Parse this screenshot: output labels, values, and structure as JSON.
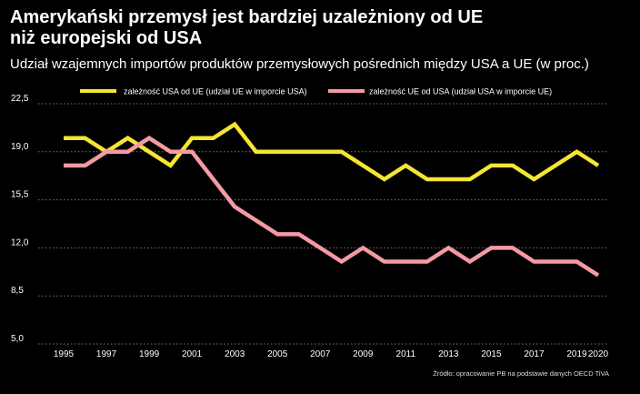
{
  "header": {
    "title_line1": "Amerykański przemysł jest bardziej uzależniony od UE",
    "title_line2": "niż europejski od USA",
    "subtitle": "Udział wzajemnych importów produktów przemysłowych pośrednich między USA a UE (w proc.)"
  },
  "source": "Źródło: opracowanie PB na podstawie danych OECD TiVA",
  "chart_data": {
    "type": "line",
    "title": "Amerykański przemysł jest bardziej uzależniony od UE niż europejski od USA",
    "xlabel": "",
    "ylabel": "",
    "x": [
      1995,
      1996,
      1997,
      1998,
      1999,
      2000,
      2001,
      2002,
      2003,
      2004,
      2005,
      2006,
      2007,
      2008,
      2009,
      2010,
      2011,
      2012,
      2013,
      2014,
      2015,
      2016,
      2017,
      2018,
      2019,
      2020
    ],
    "xticks": [
      "1995",
      "1997",
      "1999",
      "2001",
      "2003",
      "2005",
      "2007",
      "2009",
      "2011",
      "2013",
      "2015",
      "2017",
      "2019",
      "2020"
    ],
    "ylim": [
      5,
      22.5
    ],
    "yticks": [
      "22,5",
      "19,0",
      "15,5",
      "12,0",
      "8,5",
      "5,0"
    ],
    "grid": true,
    "legend_position": "top",
    "series": [
      {
        "name": "zależność USA od UE (udział UE w imporcie USA)",
        "color": "#f5e534",
        "values": [
          20,
          20,
          19,
          20,
          19,
          18,
          20,
          20,
          21,
          19,
          19,
          19,
          19,
          19,
          18,
          17,
          18,
          17,
          17,
          17,
          18,
          18,
          17,
          18,
          19,
          18
        ]
      },
      {
        "name": "zależność UE od USA (udział USA w imporcie UE)",
        "color": "#f59aa3",
        "values": [
          18,
          18,
          19,
          19,
          20,
          19,
          19,
          17,
          15,
          14,
          13,
          13,
          12,
          11,
          12,
          11,
          11,
          11,
          12,
          11,
          12,
          12,
          11,
          11,
          11,
          10
        ]
      }
    ]
  }
}
